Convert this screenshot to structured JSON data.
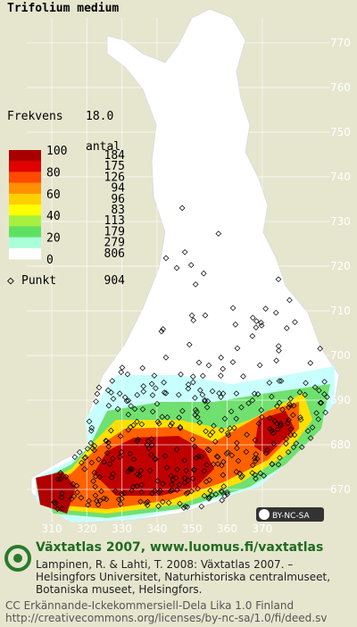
{
  "title": "Trifolium medium",
  "frequency": {
    "label": "Frekvens",
    "value": "18.0"
  },
  "legend": {
    "header": "antal",
    "scale": [
      100,
      80,
      60,
      40,
      20,
      0
    ],
    "bands": [
      {
        "color": "#a80000",
        "count": 184
      },
      {
        "color": "#e00000",
        "count": 175
      },
      {
        "color": "#ff4a00",
        "count": 126
      },
      {
        "color": "#ff9000",
        "count": 94
      },
      {
        "color": "#ffd000",
        "count": 96
      },
      {
        "color": "#ffff00",
        "count": 83
      },
      {
        "color": "#a8f040",
        "count": 113
      },
      {
        "color": "#60e060",
        "count": 179
      },
      {
        "color": "#a8ffd8",
        "count": 279
      },
      {
        "color": "#ffffff",
        "count": 806
      }
    ],
    "points": {
      "label": "Punkt",
      "count": 904
    }
  },
  "northing": [
    770,
    760,
    750,
    740,
    730,
    720,
    710,
    700,
    690,
    680,
    670
  ],
  "easting": [
    310,
    320,
    330,
    340,
    350,
    360,
    370
  ],
  "license_badge": "BY-NC-SA",
  "footer": {
    "heading": "Växtatlas 2007, www.luomus.fi/vaxtatlas",
    "citation": [
      "Lampinen, R. & Lahti, T. 2008: Växtatlas 2007. –",
      "Helsingfors Universitet, Naturhistoriska centralmuseet,",
      "Botaniska museet, Helsingfors."
    ],
    "license": [
      "CC Erkännande-Ickekommersiell-Dela Lika 1.0 Finland",
      "http://creativecommons.org/licenses/by-nc-sa/1.0/fi/deed.sv"
    ]
  }
}
